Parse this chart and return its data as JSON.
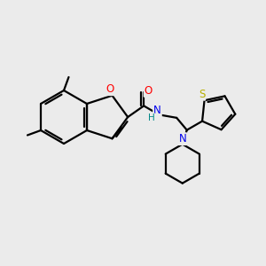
{
  "bg_color": "#ebebeb",
  "line_color": "#000000",
  "bond_lw": 1.6,
  "font_size": 8.5,
  "figsize": [
    3.0,
    3.0
  ],
  "dpi": 100,
  "colors": {
    "O": "#ff0000",
    "N": "#0000ee",
    "H": "#008888",
    "S": "#b8b000",
    "C": "#000000"
  }
}
